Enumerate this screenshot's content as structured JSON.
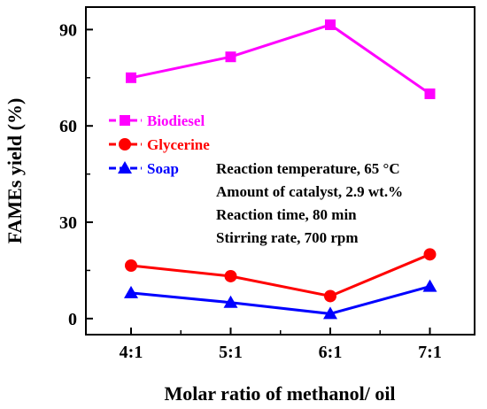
{
  "chart_data": {
    "type": "line",
    "xlabel": "Molar ratio of methanol/ oil",
    "ylabel": "FAMEs yield (%)",
    "categories": [
      "4:1",
      "5:1",
      "6:1",
      "7:1"
    ],
    "yticks": [
      0,
      30,
      60,
      90
    ],
    "ylim": [
      -5,
      97
    ],
    "grid": false,
    "legend_position": "left, middle",
    "series": [
      {
        "name": "Biodiesel",
        "values": [
          75,
          81.5,
          91.5,
          70
        ],
        "color": "#ff00ff",
        "marker": "square"
      },
      {
        "name": "Glycerine",
        "values": [
          16.5,
          13.2,
          7,
          20
        ],
        "color": "#ff0000",
        "marker": "circle"
      },
      {
        "name": "Soap",
        "values": [
          8,
          5,
          1.5,
          10
        ],
        "color": "#0000ff",
        "marker": "triangle"
      }
    ],
    "annotations": [
      "Reaction temperature, 65 °C",
      "Amount of catalyst, 2.9 wt.%",
      "Reaction time, 80 min",
      "Stirring rate, 700 rpm"
    ]
  }
}
